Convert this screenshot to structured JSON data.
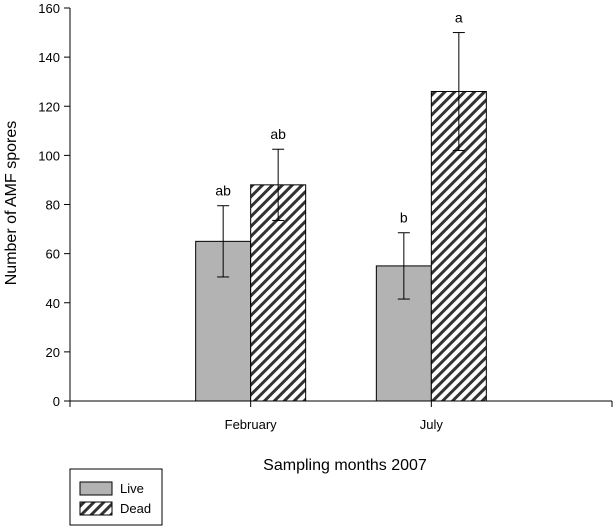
{
  "chart_data": {
    "type": "bar",
    "categories": [
      "February",
      "July"
    ],
    "series": [
      {
        "name": "Live",
        "values": [
          65,
          55
        ],
        "error": [
          14.5,
          13.5
        ],
        "labels": [
          "ab",
          "b"
        ],
        "color": "#b3b3b3",
        "pattern": "solid"
      },
      {
        "name": "Dead",
        "values": [
          88,
          126
        ],
        "error": [
          14.5,
          24
        ],
        "labels": [
          "ab",
          "a"
        ],
        "color": "#ffffff",
        "pattern": "diagonal-hatch"
      }
    ],
    "xlabel": "Sampling months 2007",
    "ylabel": "Number of AMF spores",
    "ylim": [
      0,
      160
    ],
    "yticks": [
      0,
      20,
      40,
      60,
      80,
      100,
      120,
      140,
      160
    ],
    "legend_position": "bottom-left",
    "grid": false
  }
}
